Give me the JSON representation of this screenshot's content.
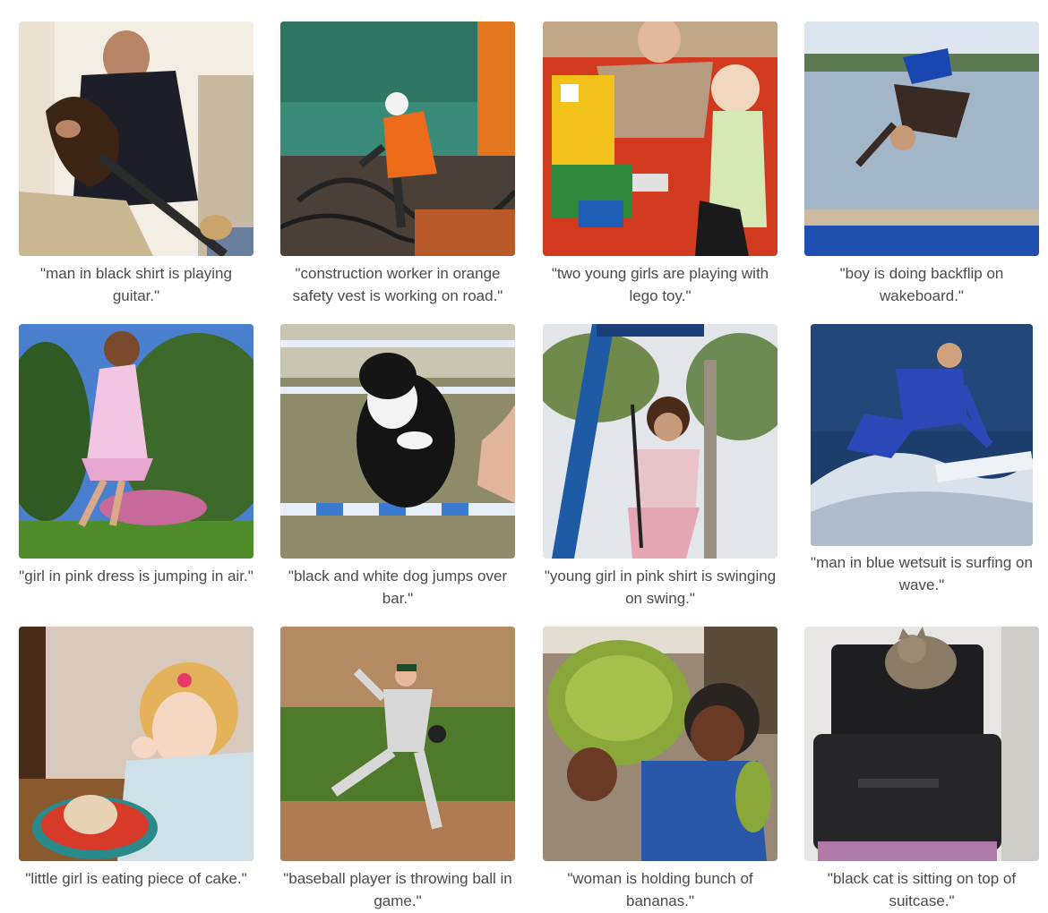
{
  "gallery": {
    "items": [
      {
        "caption": "\"man in black shirt is playing guitar.\"",
        "icon": "man-guitar-photo"
      },
      {
        "caption": "\"construction worker in orange safety vest is working on road.\"",
        "icon": "construction-worker-photo"
      },
      {
        "caption": "\"two young girls are playing with lego toy.\"",
        "icon": "girls-lego-photo"
      },
      {
        "caption": "\"boy is doing backflip on wakeboard.\"",
        "icon": "boy-backflip-photo"
      },
      {
        "caption": "\"girl in pink dress is jumping in air.\"",
        "icon": "girl-jumping-photo"
      },
      {
        "caption": "\"black and white dog jumps over bar.\"",
        "icon": "dog-jumping-photo"
      },
      {
        "caption": "\"young girl in pink shirt is swinging on swing.\"",
        "icon": "girl-swing-photo"
      },
      {
        "caption": "\"man in blue wetsuit is surfing on wave.\"",
        "icon": "surfer-photo"
      },
      {
        "caption": "\"little girl is eating piece of cake.\"",
        "icon": "girl-cake-photo"
      },
      {
        "caption": "\"baseball player is throwing ball in game.\"",
        "icon": "baseball-pitcher-photo"
      },
      {
        "caption": "\"woman is holding bunch of bananas.\"",
        "icon": "woman-bananas-photo"
      },
      {
        "caption": "\"black cat is sitting on top of suitcase.\"",
        "icon": "cat-suitcase-photo"
      }
    ]
  }
}
